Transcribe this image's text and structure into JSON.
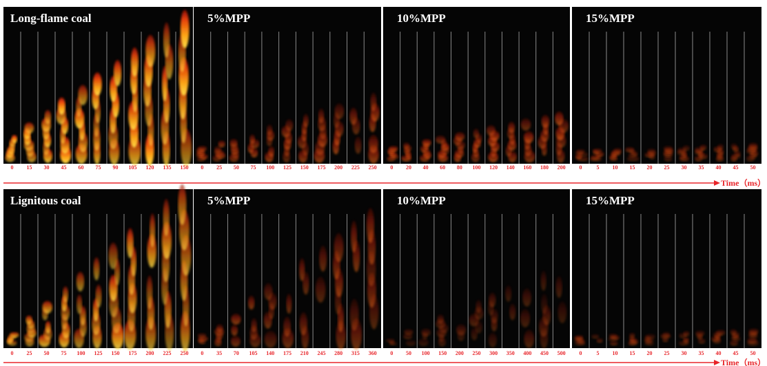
{
  "rows": [
    {
      "panels": [
        {
          "title": "Long-flame coal",
          "times": [
            0,
            15,
            30,
            45,
            60,
            75,
            90,
            105,
            120,
            135,
            150
          ]
        },
        {
          "title": "5%MPP",
          "times": [
            0,
            25,
            50,
            75,
            100,
            125,
            150,
            175,
            200,
            225,
            250
          ]
        },
        {
          "title": "10%MPP",
          "times": [
            0,
            20,
            40,
            60,
            80,
            100,
            120,
            140,
            160,
            180,
            200
          ]
        },
        {
          "title": "15%MPP",
          "times": [
            0,
            5,
            10,
            15,
            20,
            25,
            30,
            35,
            40,
            45,
            50
          ]
        }
      ],
      "axis_label": "Time（ms）"
    },
    {
      "panels": [
        {
          "title": "Lignitous coal",
          "times": [
            0,
            25,
            50,
            75,
            100,
            125,
            150,
            175,
            200,
            225,
            250
          ]
        },
        {
          "title": "5%MPP",
          "times": [
            0,
            35,
            70,
            105,
            140,
            175,
            210,
            245,
            280,
            315,
            360
          ]
        },
        {
          "title": "10%MPP",
          "times": [
            0,
            50,
            100,
            150,
            200,
            250,
            300,
            350,
            400,
            450,
            500
          ]
        },
        {
          "title": "15%MPP",
          "times": [
            0,
            5,
            10,
            15,
            20,
            25,
            30,
            35,
            40,
            45,
            50
          ]
        }
      ],
      "axis_label": "Time（ms）"
    }
  ]
}
